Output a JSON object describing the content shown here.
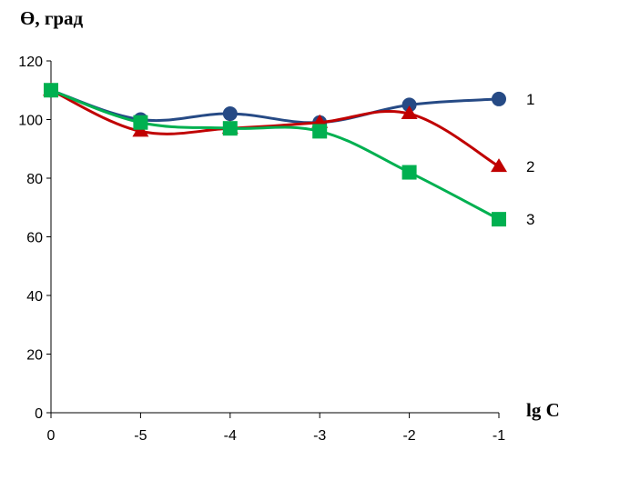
{
  "chart_data": {
    "type": "line",
    "ylabel": "Ө, град",
    "xlabel": "lg C",
    "categories": [
      "0",
      "-5",
      "-4",
      "-3",
      "-2",
      "-1"
    ],
    "ylim": [
      0,
      120
    ],
    "yticks": [
      "0",
      "20",
      "40",
      "60",
      "80",
      "100",
      "120"
    ],
    "grid": false,
    "series": [
      {
        "label": "1",
        "color": "#264a85",
        "marker": "circle",
        "values": [
          110,
          100,
          102,
          99,
          105,
          107
        ]
      },
      {
        "label": "2",
        "color": "#c00000",
        "marker": "triangle",
        "values": [
          110,
          96,
          97,
          99,
          102,
          84
        ]
      },
      {
        "label": "3",
        "color": "#00b050",
        "marker": "square",
        "values": [
          110,
          99,
          97,
          96,
          82,
          66
        ]
      }
    ]
  }
}
